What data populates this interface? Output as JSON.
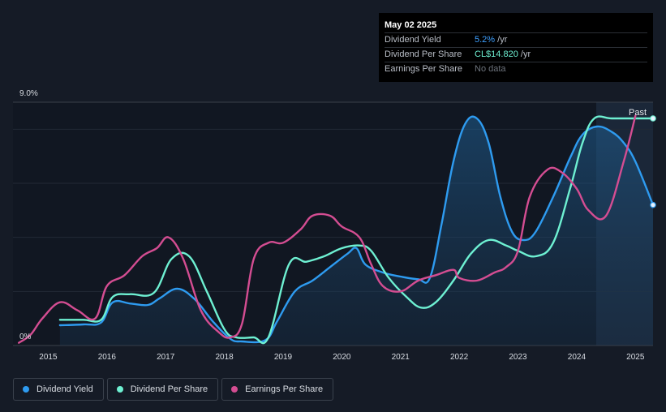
{
  "tooltip": {
    "date": "May 02 2025",
    "rows": [
      {
        "label": "Dividend Yield",
        "value": "5.2%",
        "suffix": " /yr"
      },
      {
        "label": "Dividend Per Share",
        "value": "CL$14.820",
        "suffix": " /yr"
      },
      {
        "label": "Earnings Per Share",
        "value": "No data",
        "suffix": ""
      }
    ]
  },
  "legend": [
    {
      "label": "Dividend Yield",
      "color": "#2e9bf0"
    },
    {
      "label": "Dividend Per Share",
      "color": "#6ef0d2"
    },
    {
      "label": "Earnings Per Share",
      "color": "#d44d92"
    }
  ],
  "chart_data": {
    "type": "line",
    "y_labels": [
      "9.0%",
      "0%"
    ],
    "ylim": [
      0,
      9
    ],
    "xlim": [
      2014.4,
      2025.3
    ],
    "x_ticks": [
      "2015",
      "2016",
      "2017",
      "2018",
      "2019",
      "2020",
      "2021",
      "2022",
      "2023",
      "2024",
      "2025"
    ],
    "past_label": "Past",
    "grid": true,
    "series": [
      {
        "name": "Dividend Yield",
        "color": "#2e9bf0",
        "area": true,
        "x": [
          2015.2,
          2015.6,
          2015.9,
          2016.1,
          2016.4,
          2016.7,
          2016.9,
          2017.2,
          2017.5,
          2017.8,
          2018.1,
          2018.3,
          2018.7,
          2018.9,
          2019.2,
          2019.5,
          2019.8,
          2020.1,
          2020.25,
          2020.4,
          2020.7,
          2021.0,
          2021.3,
          2021.5,
          2021.7,
          2021.9,
          2022.1,
          2022.3,
          2022.5,
          2022.7,
          2022.9,
          2023.1,
          2023.3,
          2023.6,
          2023.9,
          2024.1,
          2024.35,
          2024.6,
          2024.8,
          2025.0,
          2025.3
        ],
        "y": [
          0.75,
          0.78,
          0.85,
          1.6,
          1.55,
          1.5,
          1.75,
          2.1,
          1.7,
          0.9,
          0.25,
          0.15,
          0.2,
          0.9,
          2.0,
          2.4,
          2.9,
          3.4,
          3.6,
          3.0,
          2.7,
          2.55,
          2.45,
          2.5,
          4.5,
          6.8,
          8.2,
          8.4,
          7.5,
          5.5,
          4.2,
          3.9,
          4.2,
          5.5,
          7.0,
          7.8,
          8.1,
          7.9,
          7.5,
          6.8,
          5.2
        ]
      },
      {
        "name": "Dividend Per Share",
        "color": "#6ef0d2",
        "area": false,
        "x": [
          2015.2,
          2015.6,
          2015.9,
          2016.1,
          2016.4,
          2016.8,
          2017.1,
          2017.4,
          2017.7,
          2018.0,
          2018.2,
          2018.5,
          2018.75,
          2019.1,
          2019.4,
          2019.7,
          2020.0,
          2020.3,
          2020.5,
          2020.8,
          2021.1,
          2021.35,
          2021.6,
          2021.9,
          2022.2,
          2022.5,
          2022.8,
          2023.0,
          2023.3,
          2023.6,
          2023.9,
          2024.1,
          2024.3,
          2024.6,
          2025.0,
          2025.3
        ],
        "y": [
          0.95,
          0.95,
          0.95,
          1.8,
          1.9,
          1.95,
          3.2,
          3.3,
          2.0,
          0.6,
          0.3,
          0.3,
          0.3,
          3.0,
          3.1,
          3.3,
          3.6,
          3.7,
          3.5,
          2.5,
          1.8,
          1.4,
          1.6,
          2.4,
          3.4,
          3.9,
          3.7,
          3.5,
          3.3,
          3.8,
          5.9,
          7.5,
          8.4,
          8.4,
          8.4,
          8.4
        ]
      },
      {
        "name": "Earnings Per Share",
        "color": "#d44d92",
        "area": false,
        "x": [
          2014.5,
          2014.7,
          2014.9,
          2015.2,
          2015.5,
          2015.8,
          2016.0,
          2016.3,
          2016.6,
          2016.85,
          2017.05,
          2017.3,
          2017.6,
          2017.9,
          2018.1,
          2018.3,
          2018.5,
          2018.75,
          2019.0,
          2019.3,
          2019.5,
          2019.8,
          2020.0,
          2020.3,
          2020.5,
          2020.7,
          2021.0,
          2021.3,
          2021.6,
          2021.9,
          2022.0,
          2022.3,
          2022.6,
          2022.8,
          2023.0,
          2023.2,
          2023.5,
          2023.75,
          2024.0,
          2024.2,
          2024.5,
          2024.8,
          2025.0
        ],
        "y": [
          0.1,
          0.4,
          1.0,
          1.6,
          1.3,
          1.0,
          2.2,
          2.6,
          3.3,
          3.6,
          4.0,
          3.2,
          1.3,
          0.5,
          0.3,
          0.8,
          3.2,
          3.8,
          3.8,
          4.3,
          4.8,
          4.8,
          4.4,
          4.0,
          3.0,
          2.2,
          2.0,
          2.4,
          2.6,
          2.8,
          2.5,
          2.4,
          2.7,
          2.9,
          3.5,
          5.5,
          6.5,
          6.4,
          5.8,
          5.0,
          4.8,
          6.8,
          8.5
        ]
      }
    ]
  }
}
